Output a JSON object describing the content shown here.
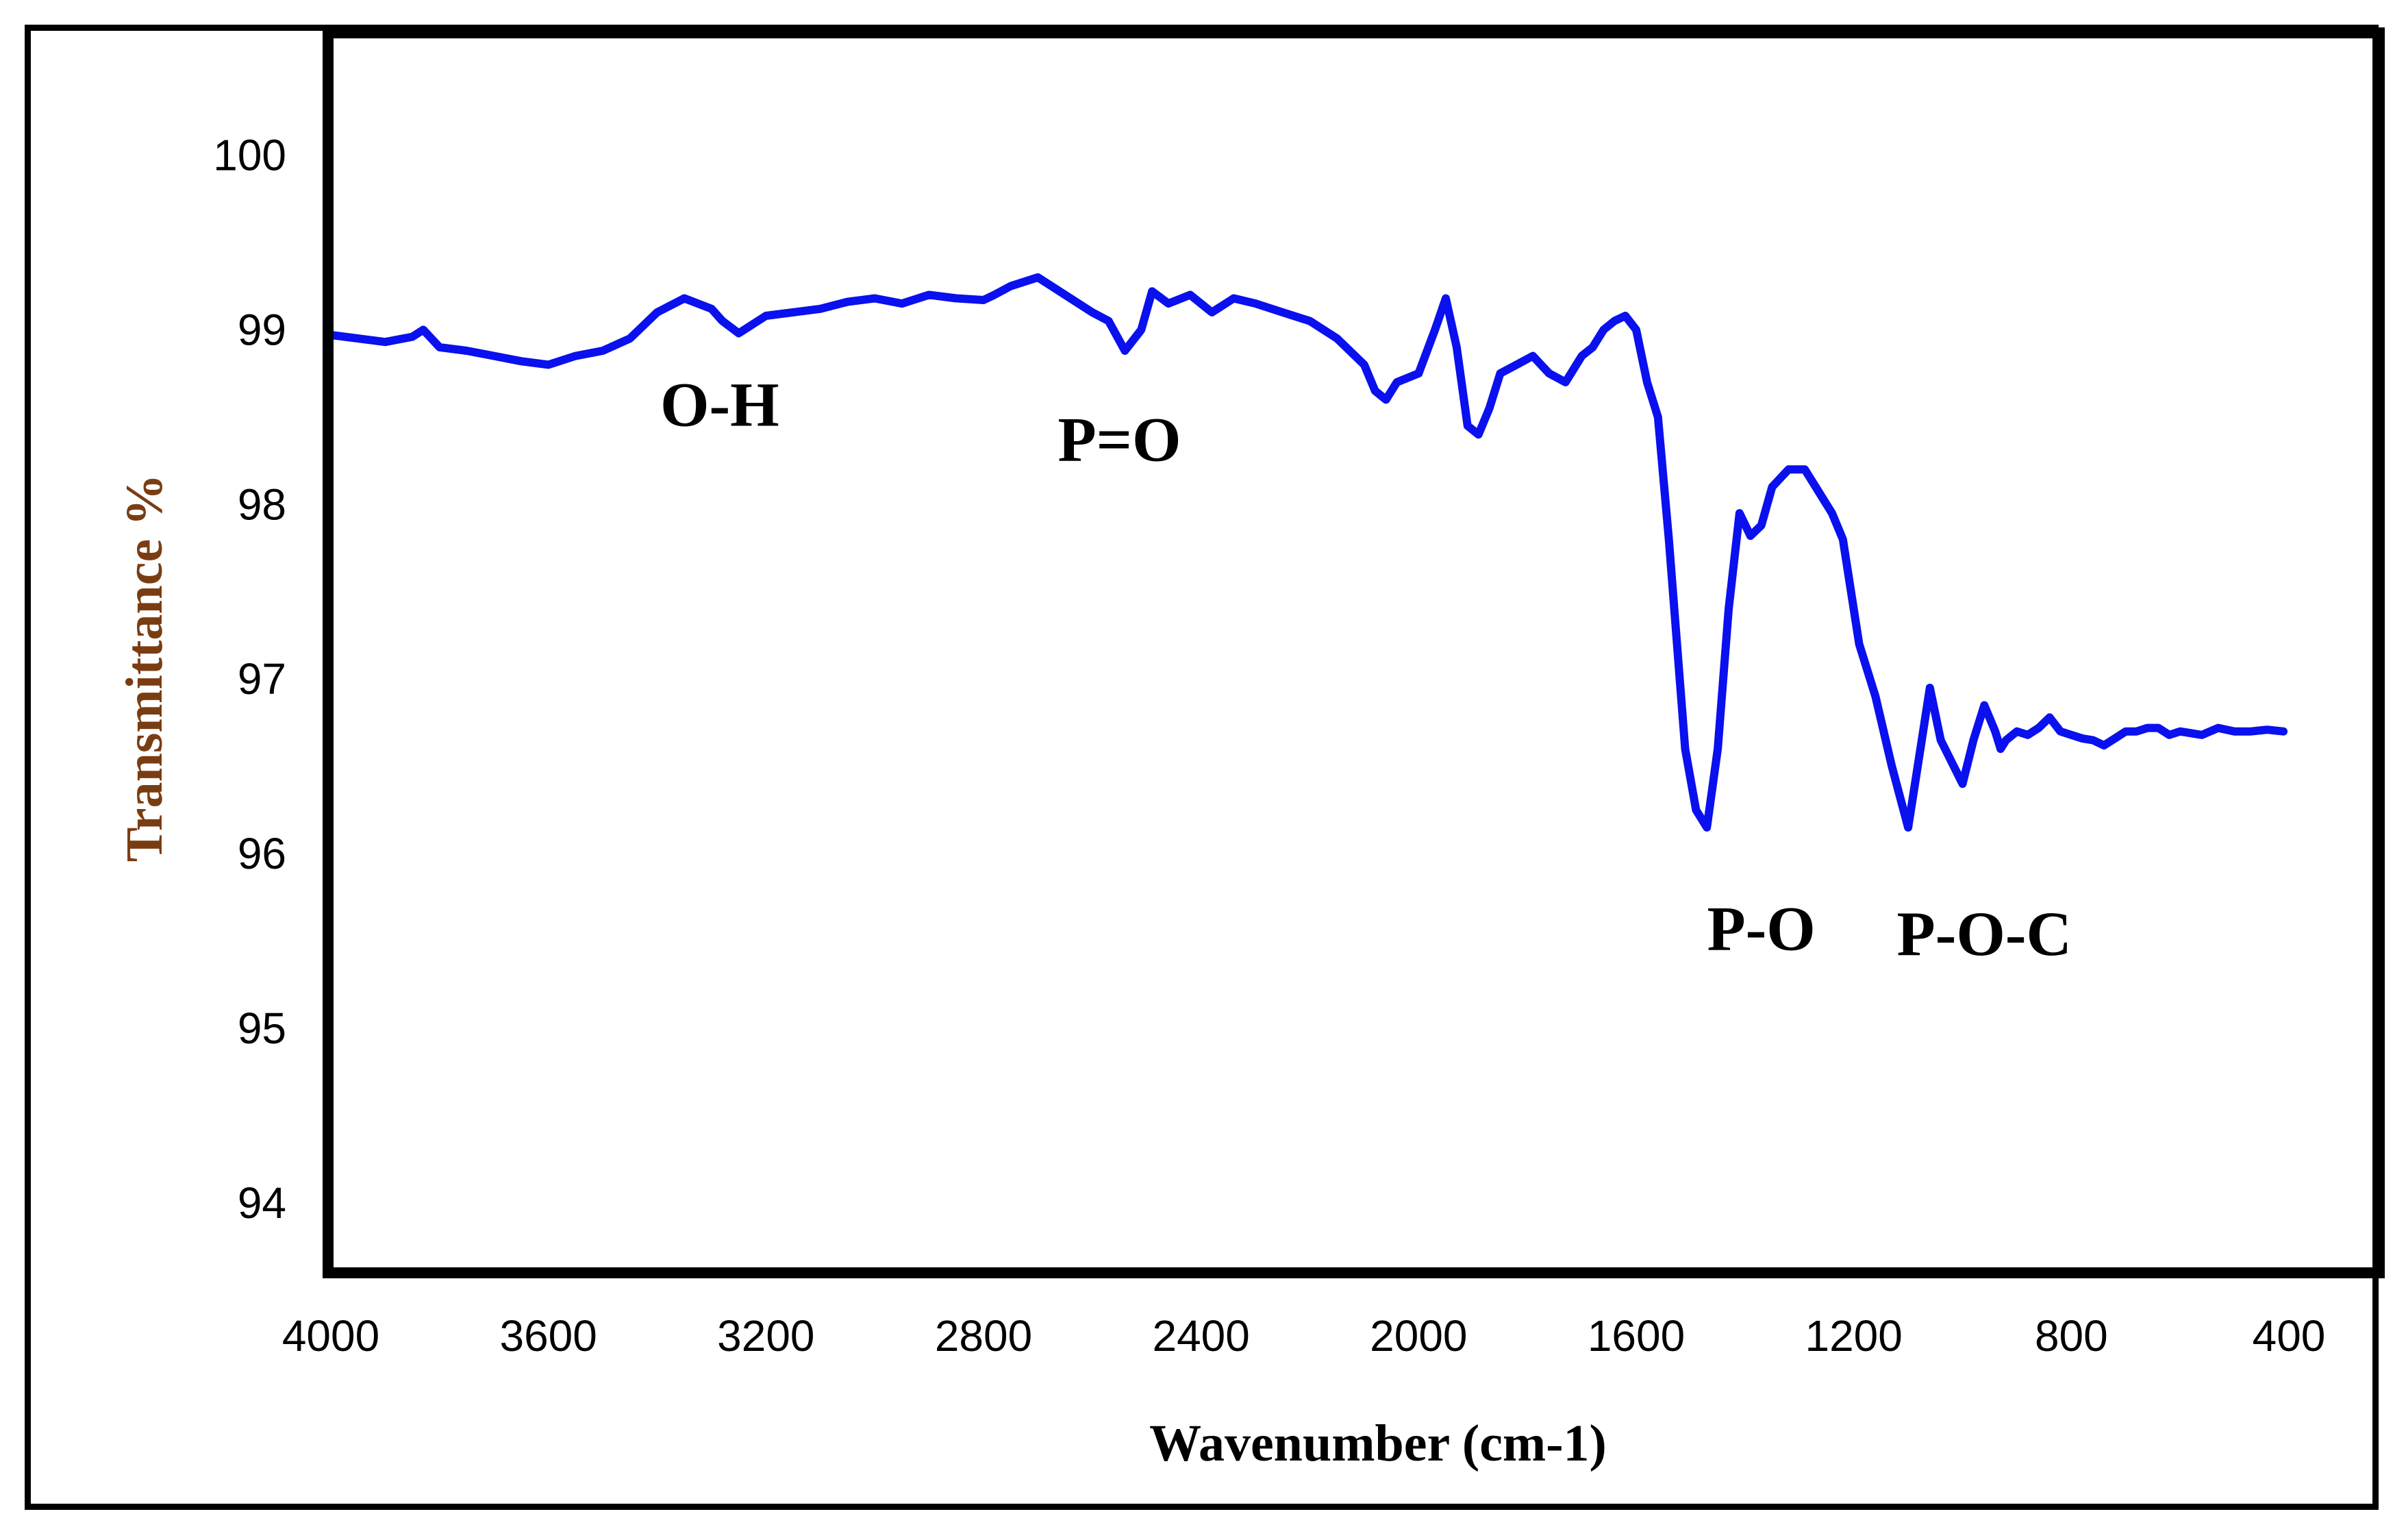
{
  "chart_data": {
    "type": "line",
    "title": "",
    "xlabel": "Wavenumber (cm-1)",
    "ylabel": "Transmittance %",
    "xlim": [
      4000,
      400
    ],
    "ylim": [
      93.6,
      100.7
    ],
    "x_ticks": [
      4000,
      3600,
      3200,
      2800,
      2400,
      2000,
      1600,
      1200,
      800,
      400
    ],
    "y_ticks": [
      94,
      95,
      96,
      97,
      98,
      99,
      100
    ],
    "grid": false,
    "legend": "none",
    "line_color": "#0a10ee",
    "series": [
      {
        "name": "Transmittance",
        "x": [
          4000,
          3900,
          3850,
          3830,
          3800,
          3750,
          3700,
          3650,
          3600,
          3550,
          3500,
          3450,
          3400,
          3350,
          3300,
          3280,
          3250,
          3200,
          3150,
          3100,
          3050,
          3000,
          2950,
          2900,
          2850,
          2800,
          2780,
          2750,
          2700,
          2650,
          2600,
          2570,
          2540,
          2510,
          2490,
          2460,
          2420,
          2380,
          2340,
          2300,
          2250,
          2200,
          2150,
          2100,
          2080,
          2060,
          2040,
          2000,
          1970,
          1950,
          1930,
          1910,
          1890,
          1870,
          1850,
          1820,
          1790,
          1760,
          1730,
          1700,
          1680,
          1660,
          1640,
          1620,
          1600,
          1580,
          1560,
          1540,
          1510,
          1490,
          1470,
          1450,
          1430,
          1410,
          1390,
          1370,
          1350,
          1320,
          1290,
          1270,
          1240,
          1220,
          1190,
          1160,
          1130,
          1100,
          1080,
          1060,
          1040,
          1000,
          980,
          960,
          940,
          930,
          920,
          900,
          880,
          860,
          840,
          820,
          800,
          780,
          760,
          740,
          720,
          700,
          680,
          660,
          640,
          620,
          600,
          560,
          530,
          500,
          470,
          440,
          410
        ],
        "values": [
          98.97,
          98.93,
          98.96,
          99.0,
          98.9,
          98.88,
          98.85,
          98.82,
          98.8,
          98.85,
          98.88,
          98.95,
          99.1,
          99.18,
          99.12,
          99.05,
          98.98,
          99.08,
          99.1,
          99.12,
          99.16,
          99.18,
          99.15,
          99.2,
          99.18,
          99.17,
          99.2,
          99.25,
          99.3,
          99.2,
          99.1,
          99.05,
          98.88,
          99.0,
          99.22,
          99.15,
          99.2,
          99.1,
          99.18,
          99.15,
          99.1,
          99.05,
          98.95,
          98.8,
          98.65,
          98.6,
          98.7,
          98.75,
          99.0,
          99.18,
          98.9,
          98.45,
          98.4,
          98.55,
          98.75,
          98.8,
          98.85,
          98.75,
          98.7,
          98.85,
          98.9,
          99.0,
          99.05,
          99.08,
          99.0,
          98.7,
          98.5,
          97.8,
          96.6,
          96.25,
          96.15,
          96.6,
          97.4,
          97.95,
          97.82,
          97.88,
          98.1,
          98.2,
          98.2,
          98.1,
          97.95,
          97.8,
          97.2,
          96.9,
          96.5,
          96.15,
          96.55,
          96.95,
          96.65,
          96.4,
          96.65,
          96.85,
          96.7,
          96.6,
          96.65,
          96.7,
          96.68,
          96.72,
          96.78,
          96.7,
          96.68,
          96.66,
          96.65,
          96.62,
          96.66,
          96.7,
          96.7,
          96.72,
          96.72,
          96.68,
          96.7,
          96.68,
          96.72,
          96.7,
          96.7,
          96.71,
          96.7
        ]
      }
    ],
    "annotations": [
      {
        "text": "O-H",
        "x": 3285,
        "y": 98.45
      },
      {
        "text": "P=O",
        "x": 2550,
        "y": 98.25
      },
      {
        "text": "P-O",
        "x": 1370,
        "y": 95.45
      },
      {
        "text": "P-O-C",
        "x": 960,
        "y": 95.42
      }
    ]
  }
}
